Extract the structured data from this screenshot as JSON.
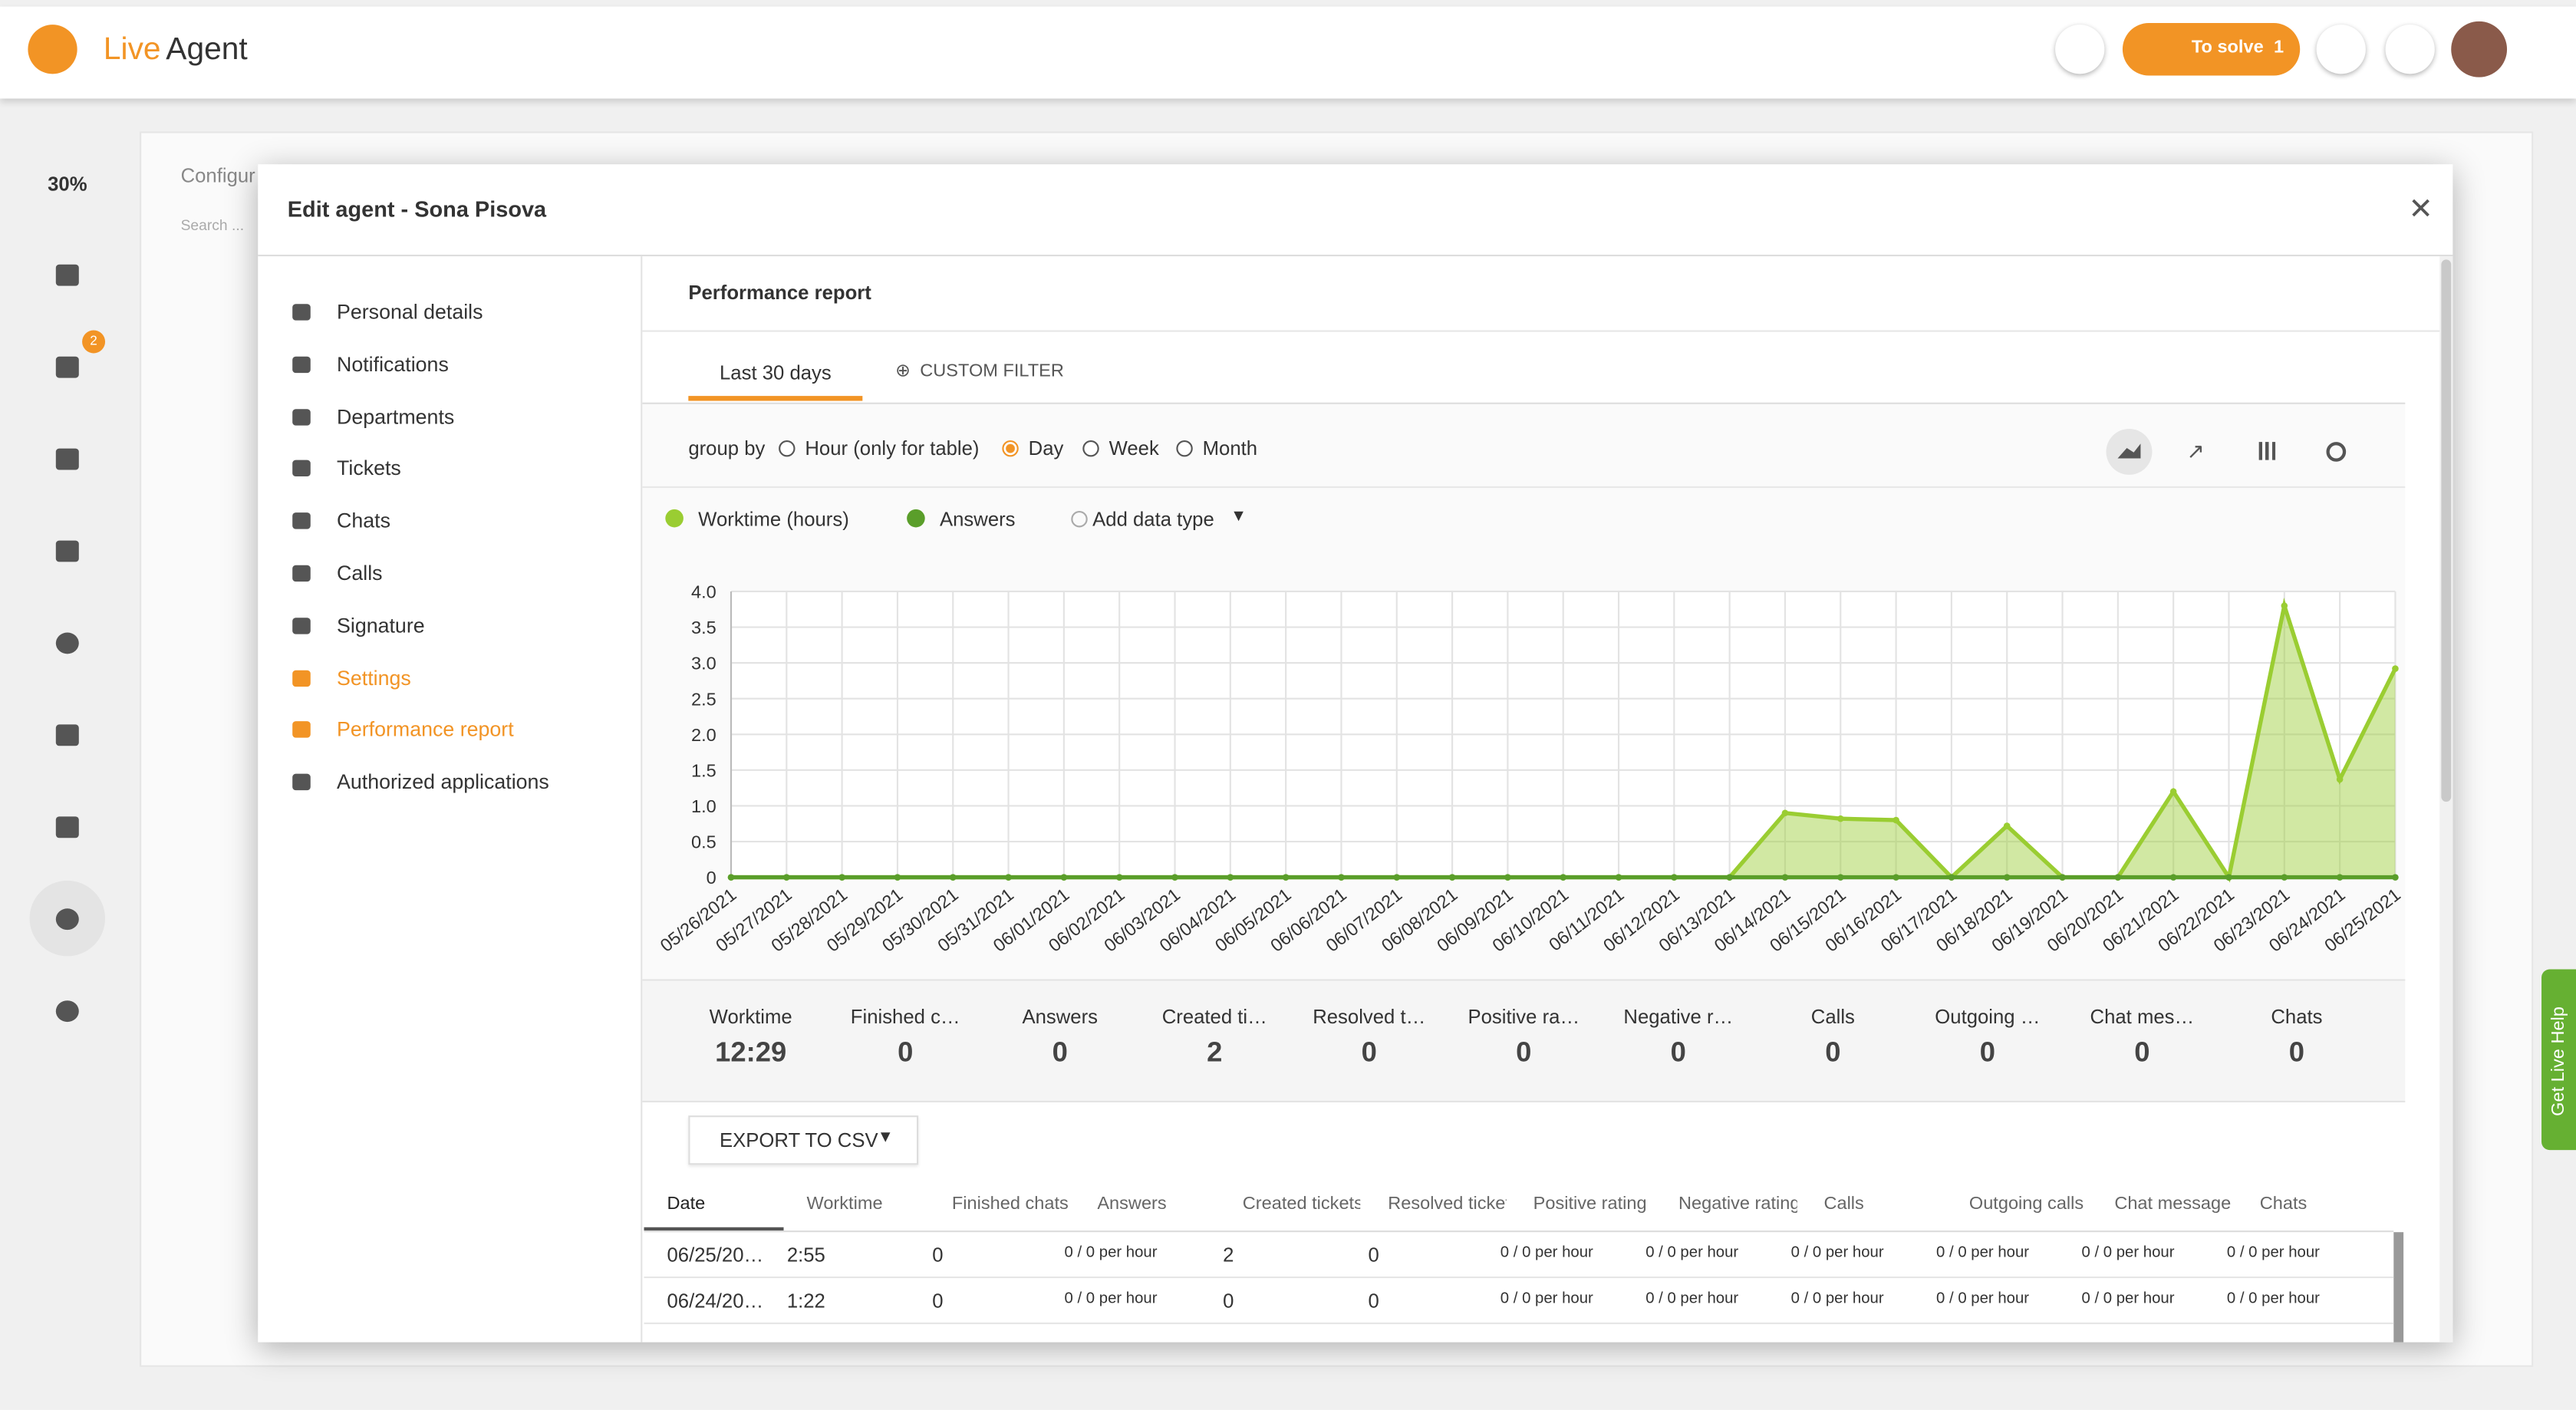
{
  "header": {
    "logo_live": "Live",
    "logo_agent": "Agent",
    "to_solve": "To solve",
    "to_solve_count": 1
  },
  "sidebar": {
    "percent": "30%",
    "badge": 2
  },
  "background": {
    "config_title": "Configur",
    "search": "Search ..."
  },
  "modal": {
    "title": "Edit agent - Sona Pisova",
    "nav": [
      "Personal details",
      "Notifications",
      "Departments",
      "Tickets",
      "Chats",
      "Calls",
      "Signature",
      "Settings",
      "Performance report",
      "Authorized applications"
    ],
    "highlighted": [
      7,
      8
    ]
  },
  "report": {
    "title": "Performance report",
    "tabs": [
      "Last 30 days",
      "CUSTOM FILTER"
    ],
    "group_by_label": "group by",
    "group_options": [
      "Hour (only for table)",
      "Day",
      "Week",
      "Month"
    ],
    "group_selected": 1,
    "add_data_type": "Add data type",
    "stats": [
      {
        "label": "Worktime",
        "value": "12:29"
      },
      {
        "label": "Finished c…",
        "value": 0
      },
      {
        "label": "Answers",
        "value": 0
      },
      {
        "label": "Created ti…",
        "value": 2
      },
      {
        "label": "Resolved t…",
        "value": 0
      },
      {
        "label": "Positive ra…",
        "value": 0
      },
      {
        "label": "Negative r…",
        "value": 0
      },
      {
        "label": "Calls",
        "value": 0
      },
      {
        "label": "Outgoing …",
        "value": 0
      },
      {
        "label": "Chat mes…",
        "value": 0
      },
      {
        "label": "Chats",
        "value": 0
      }
    ],
    "export": "EXPORT TO CSV",
    "table": {
      "columns": [
        "Date",
        "Worktime",
        "Finished chats",
        "Answers",
        "Created tickets",
        "Resolved tickets",
        "Positive rating",
        "Negative rating",
        "Calls",
        "Outgoing calls",
        "Chat message",
        "Chats"
      ],
      "rows": [
        [
          "06/25/20…",
          "2:55",
          "0",
          "0 / 0 per hour",
          "2",
          "0",
          "0 / 0 per hour",
          "0 / 0 per hour",
          "0 / 0 per hour",
          "0 / 0 per hour",
          "0 / 0 per hour",
          "0 / 0 per hour"
        ],
        [
          "06/24/20…",
          "1:22",
          "0",
          "0 / 0 per hour",
          "0",
          "0",
          "0 / 0 per hour",
          "0 / 0 per hour",
          "0 / 0 per hour",
          "0 / 0 per hour",
          "0 / 0 per hour",
          "0 / 0 per hour"
        ]
      ]
    }
  },
  "get_help": "Get Live Help",
  "chart_data": {
    "type": "area",
    "categories": [
      "05/26/2021",
      "05/27/2021",
      "05/28/2021",
      "05/29/2021",
      "05/30/2021",
      "05/31/2021",
      "06/01/2021",
      "06/02/2021",
      "06/03/2021",
      "06/04/2021",
      "06/05/2021",
      "06/06/2021",
      "06/07/2021",
      "06/08/2021",
      "06/09/2021",
      "06/10/2021",
      "06/11/2021",
      "06/12/2021",
      "06/13/2021",
      "06/14/2021",
      "06/15/2021",
      "06/16/2021",
      "06/17/2021",
      "06/18/2021",
      "06/19/2021",
      "06/20/2021",
      "06/21/2021",
      "06/22/2021",
      "06/23/2021",
      "06/24/2021",
      "06/25/2021"
    ],
    "series": [
      {
        "name": "Worktime (hours)",
        "color": "#9acd32",
        "values": [
          0,
          0,
          0,
          0,
          0,
          0,
          0,
          0,
          0,
          0,
          0,
          0,
          0,
          0,
          0,
          0,
          0,
          0,
          0,
          0.9,
          0.82,
          0.8,
          0,
          0.72,
          0,
          0,
          1.2,
          0,
          3.8,
          1.37,
          2.92
        ]
      },
      {
        "name": "Answers",
        "color": "#5a9e2a",
        "values": [
          0,
          0,
          0,
          0,
          0,
          0,
          0,
          0,
          0,
          0,
          0,
          0,
          0,
          0,
          0,
          0,
          0,
          0,
          0,
          0,
          0,
          0,
          0,
          0,
          0,
          0,
          0,
          0,
          0,
          0,
          0
        ]
      }
    ],
    "ylim": [
      0,
      4
    ],
    "yticks": [
      0,
      0.5,
      {
        "value": 1,
        "label": "1.0"
      },
      1.5,
      {
        "value": 2,
        "label": "2.0"
      },
      2.5,
      {
        "value": 3,
        "label": "3.0"
      },
      3.5,
      {
        "value": 4,
        "label": "4.0"
      }
    ],
    "grid": true
  }
}
